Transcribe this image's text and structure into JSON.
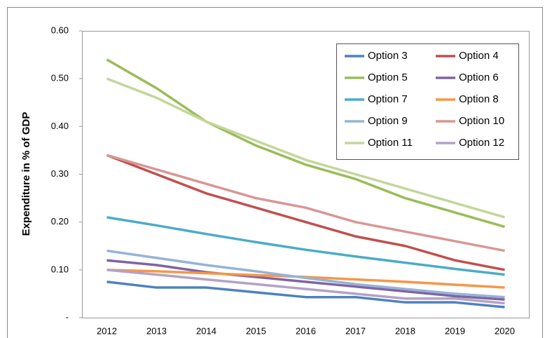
{
  "chart_data": {
    "type": "line",
    "ylabel": "Expenditure in % of GDP",
    "categories": [
      "2012",
      "2013",
      "2014",
      "2015",
      "2016",
      "2017",
      "2018",
      "2019",
      "2020"
    ],
    "series": [
      {
        "name": "Option 3",
        "color": "#4f81bd",
        "values": [
          0.075,
          0.063,
          0.063,
          0.053,
          0.043,
          0.043,
          0.032,
          0.032,
          0.022
        ]
      },
      {
        "name": "Option 4",
        "color": "#c0504d",
        "values": [
          0.34,
          0.3,
          0.26,
          0.23,
          0.2,
          0.17,
          0.15,
          0.12,
          0.1
        ]
      },
      {
        "name": "Option 5",
        "color": "#9bbb59",
        "values": [
          0.54,
          0.48,
          0.41,
          0.36,
          0.32,
          0.29,
          0.25,
          0.22,
          0.19
        ]
      },
      {
        "name": "Option 6",
        "color": "#8064a2",
        "values": [
          0.12,
          0.11,
          0.095,
          0.085,
          0.075,
          0.065,
          0.055,
          0.045,
          0.038
        ]
      },
      {
        "name": "Option 7",
        "color": "#4bacc6",
        "values": [
          0.21,
          0.193,
          0.175,
          0.158,
          0.142,
          0.128,
          0.115,
          0.102,
          0.09
        ]
      },
      {
        "name": "Option 8",
        "color": "#f79646",
        "values": [
          0.1,
          0.097,
          0.093,
          0.089,
          0.085,
          0.08,
          0.075,
          0.069,
          0.063
        ]
      },
      {
        "name": "Option 9",
        "color": "#95b3d7",
        "values": [
          0.14,
          0.125,
          0.11,
          0.097,
          0.083,
          0.07,
          0.06,
          0.05,
          0.043
        ]
      },
      {
        "name": "Option 10",
        "color": "#d99694",
        "values": [
          0.34,
          0.31,
          0.28,
          0.25,
          0.23,
          0.2,
          0.18,
          0.16,
          0.14
        ]
      },
      {
        "name": "Option 11",
        "color": "#c3d69b",
        "values": [
          0.5,
          0.46,
          0.41,
          0.37,
          0.33,
          0.3,
          0.27,
          0.24,
          0.21
        ]
      },
      {
        "name": "Option 12",
        "color": "#b3a2c7",
        "values": [
          0.1,
          0.09,
          0.08,
          0.07,
          0.06,
          0.05,
          0.04,
          0.04,
          0.03
        ]
      }
    ],
    "ylim": [
      0,
      0.6
    ],
    "yticks": [
      {
        "value": 0,
        "label": "-"
      },
      {
        "value": 0.1,
        "label": "0.10"
      },
      {
        "value": 0.2,
        "label": "0.20"
      },
      {
        "value": 0.3,
        "label": "0.30"
      },
      {
        "value": 0.4,
        "label": "0.40"
      },
      {
        "value": 0.5,
        "label": "0.50"
      },
      {
        "value": 0.6,
        "label": "0.60"
      }
    ],
    "legend": "upper right"
  }
}
